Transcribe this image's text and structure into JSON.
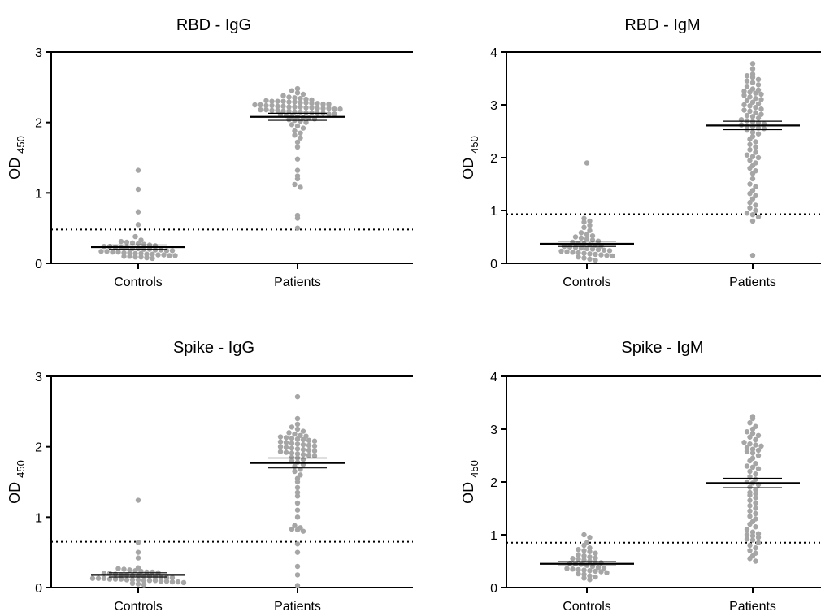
{
  "colors": {
    "point": "#a6a6a6",
    "mean": "#000000",
    "sem": "#000000",
    "cutoff": "#000000",
    "axis": "#000000"
  },
  "chart_data": [
    {
      "type": "scatter",
      "title": "RBD - IgG",
      "ylabel": "OD",
      "ylabel_sub": "450",
      "categories": [
        "Controls",
        "Patients"
      ],
      "ylim": [
        0,
        3
      ],
      "yticks": [
        "0",
        "1",
        "2",
        "3"
      ],
      "cutoff": 0.48,
      "series": [
        {
          "category": "Controls",
          "mean": 0.23,
          "sem": 0.03,
          "values": [
            1.32,
            1.05,
            0.73,
            0.55,
            0.38,
            0.33,
            0.31,
            0.3,
            0.29,
            0.28,
            0.27,
            0.26,
            0.25,
            0.24,
            0.24,
            0.23,
            0.22,
            0.22,
            0.21,
            0.21,
            0.2,
            0.2,
            0.19,
            0.19,
            0.18,
            0.18,
            0.17,
            0.17,
            0.16,
            0.16,
            0.15,
            0.15,
            0.14,
            0.14,
            0.13,
            0.13,
            0.12,
            0.12,
            0.11,
            0.11,
            0.1,
            0.1,
            0.09,
            0.09,
            0.08,
            0.07
          ]
        },
        {
          "category": "Patients",
          "mean": 2.08,
          "sem": 0.05,
          "values": [
            2.48,
            2.45,
            2.42,
            2.4,
            2.38,
            2.36,
            2.35,
            2.34,
            2.33,
            2.32,
            2.31,
            2.3,
            2.3,
            2.3,
            2.29,
            2.29,
            2.28,
            2.28,
            2.27,
            2.27,
            2.26,
            2.26,
            2.25,
            2.25,
            2.24,
            2.24,
            2.23,
            2.23,
            2.22,
            2.22,
            2.22,
            2.21,
            2.21,
            2.2,
            2.2,
            2.2,
            2.19,
            2.19,
            2.18,
            2.18,
            2.17,
            2.17,
            2.16,
            2.16,
            2.15,
            2.15,
            2.14,
            2.14,
            2.13,
            2.13,
            2.12,
            2.12,
            2.11,
            2.1,
            2.09,
            2.08,
            2.07,
            2.06,
            2.05,
            2.04,
            2.03,
            2.02,
            2.0,
            1.97,
            1.95,
            1.92,
            1.88,
            1.85,
            1.82,
            1.78,
            1.72,
            1.65,
            1.48,
            1.32,
            1.24,
            1.2,
            1.12,
            1.08,
            0.68,
            0.64,
            0.5
          ]
        }
      ]
    },
    {
      "type": "scatter",
      "title": "RBD - IgM",
      "ylabel": "OD",
      "ylabel_sub": "450",
      "categories": [
        "Controls",
        "Patients"
      ],
      "ylim": [
        0,
        4
      ],
      "yticks": [
        "0",
        "1",
        "2",
        "3",
        "4"
      ],
      "cutoff": 0.93,
      "series": [
        {
          "category": "Controls",
          "mean": 0.37,
          "sem": 0.05,
          "values": [
            1.9,
            0.85,
            0.8,
            0.78,
            0.72,
            0.68,
            0.62,
            0.58,
            0.55,
            0.52,
            0.5,
            0.48,
            0.46,
            0.44,
            0.42,
            0.4,
            0.38,
            0.37,
            0.35,
            0.34,
            0.33,
            0.32,
            0.31,
            0.3,
            0.29,
            0.28,
            0.27,
            0.26,
            0.25,
            0.24,
            0.23,
            0.22,
            0.21,
            0.2,
            0.19,
            0.18,
            0.17,
            0.16,
            0.15,
            0.14,
            0.12,
            0.1,
            0.08,
            0.06
          ]
        },
        {
          "category": "Patients",
          "mean": 2.61,
          "sem": 0.08,
          "values": [
            3.78,
            3.68,
            3.58,
            3.55,
            3.52,
            3.48,
            3.45,
            3.42,
            3.38,
            3.35,
            3.3,
            3.28,
            3.26,
            3.24,
            3.22,
            3.2,
            3.18,
            3.15,
            3.12,
            3.1,
            3.08,
            3.05,
            3.02,
            3.0,
            2.98,
            2.95,
            2.92,
            2.9,
            2.88,
            2.85,
            2.82,
            2.8,
            2.78,
            2.75,
            2.72,
            2.7,
            2.68,
            2.66,
            2.64,
            2.62,
            2.6,
            2.58,
            2.56,
            2.55,
            2.52,
            2.48,
            2.45,
            2.4,
            2.35,
            2.3,
            2.25,
            2.2,
            2.15,
            2.1,
            2.05,
            2.02,
            2.0,
            1.95,
            1.9,
            1.85,
            1.8,
            1.75,
            1.7,
            1.6,
            1.5,
            1.45,
            1.38,
            1.32,
            1.28,
            1.22,
            1.15,
            1.1,
            1.05,
            1.0,
            0.95,
            0.92,
            0.88,
            0.8,
            0.15
          ]
        }
      ]
    },
    {
      "type": "scatter",
      "title": "Spike - IgG",
      "ylabel": "OD",
      "ylabel_sub": "450",
      "categories": [
        "Controls",
        "Patients"
      ],
      "ylim": [
        0,
        3
      ],
      "yticks": [
        "0",
        "1",
        "2",
        "3"
      ],
      "cutoff": 0.65,
      "series": [
        {
          "category": "Controls",
          "mean": 0.18,
          "sem": 0.03,
          "values": [
            1.24,
            0.64,
            0.5,
            0.42,
            0.28,
            0.27,
            0.26,
            0.25,
            0.24,
            0.23,
            0.22,
            0.22,
            0.21,
            0.2,
            0.2,
            0.19,
            0.18,
            0.18,
            0.17,
            0.17,
            0.16,
            0.16,
            0.15,
            0.15,
            0.14,
            0.14,
            0.13,
            0.13,
            0.13,
            0.12,
            0.12,
            0.12,
            0.11,
            0.11,
            0.11,
            0.1,
            0.1,
            0.1,
            0.09,
            0.09,
            0.08,
            0.08,
            0.07,
            0.06,
            0.05,
            0.04
          ]
        },
        {
          "category": "Patients",
          "mean": 1.77,
          "sem": 0.07,
          "values": [
            2.71,
            2.4,
            2.32,
            2.28,
            2.25,
            2.22,
            2.2,
            2.18,
            2.16,
            2.15,
            2.14,
            2.13,
            2.12,
            2.11,
            2.1,
            2.09,
            2.08,
            2.07,
            2.06,
            2.05,
            2.04,
            2.03,
            2.02,
            2.01,
            2.0,
            1.99,
            1.98,
            1.97,
            1.96,
            1.95,
            1.94,
            1.93,
            1.92,
            1.91,
            1.9,
            1.89,
            1.88,
            1.87,
            1.85,
            1.84,
            1.82,
            1.8,
            1.78,
            1.75,
            1.72,
            1.68,
            1.65,
            1.6,
            1.55,
            1.5,
            1.42,
            1.35,
            1.3,
            1.2,
            1.1,
            1.0,
            0.88,
            0.85,
            0.83,
            0.82,
            0.8,
            0.62,
            0.5,
            0.3,
            0.18,
            0.03
          ]
        }
      ]
    },
    {
      "type": "scatter",
      "title": "Spike - IgM",
      "ylabel": "OD",
      "ylabel_sub": "450",
      "categories": [
        "Controls",
        "Patients"
      ],
      "ylim": [
        0,
        4
      ],
      "yticks": [
        "0",
        "1",
        "2",
        "3",
        "4"
      ],
      "cutoff": 0.85,
      "series": [
        {
          "category": "Controls",
          "mean": 0.45,
          "sem": 0.04,
          "values": [
            1.0,
            0.95,
            0.85,
            0.8,
            0.75,
            0.72,
            0.7,
            0.68,
            0.65,
            0.62,
            0.6,
            0.58,
            0.56,
            0.55,
            0.54,
            0.52,
            0.5,
            0.48,
            0.47,
            0.46,
            0.45,
            0.44,
            0.42,
            0.4,
            0.38,
            0.37,
            0.36,
            0.35,
            0.34,
            0.33,
            0.32,
            0.31,
            0.3,
            0.28,
            0.26,
            0.25,
            0.22,
            0.2,
            0.18,
            0.15
          ]
        },
        {
          "category": "Patients",
          "mean": 1.98,
          "sem": 0.09,
          "values": [
            3.24,
            3.2,
            3.12,
            3.05,
            3.0,
            2.95,
            2.92,
            2.88,
            2.85,
            2.8,
            2.75,
            2.72,
            2.7,
            2.68,
            2.65,
            2.62,
            2.6,
            2.58,
            2.55,
            2.5,
            2.45,
            2.4,
            2.35,
            2.3,
            2.28,
            2.25,
            2.2,
            2.15,
            2.1,
            2.05,
            2.0,
            1.98,
            1.95,
            1.9,
            1.85,
            1.8,
            1.78,
            1.75,
            1.7,
            1.65,
            1.6,
            1.55,
            1.5,
            1.45,
            1.4,
            1.35,
            1.3,
            1.25,
            1.2,
            1.15,
            1.1,
            1.05,
            1.02,
            1.0,
            0.98,
            0.95,
            0.92,
            0.9,
            0.85,
            0.8,
            0.75,
            0.7,
            0.65,
            0.6,
            0.55,
            0.5
          ]
        }
      ]
    }
  ]
}
